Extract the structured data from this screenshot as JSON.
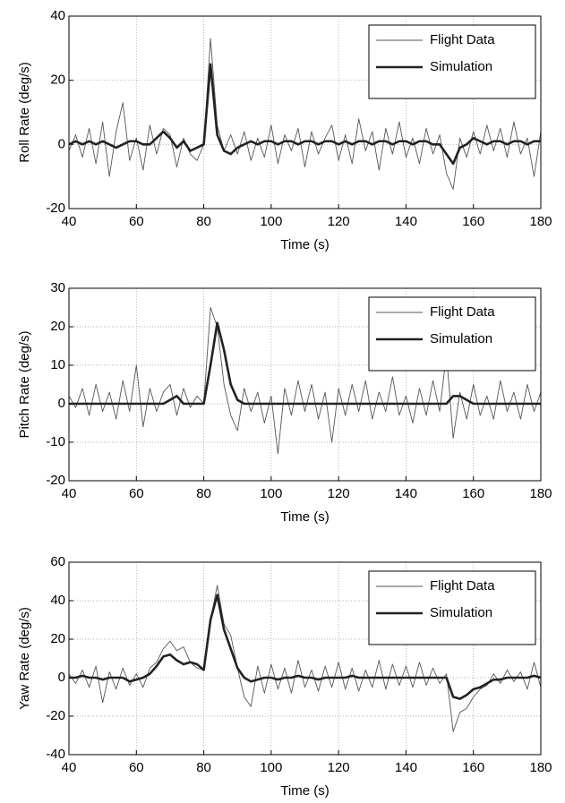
{
  "chart_data": [
    {
      "type": "line",
      "xlabel": "Time (s)",
      "ylabel": "Roll Rate (deg/s)",
      "x": [
        40,
        42,
        44,
        46,
        48,
        50,
        52,
        54,
        56,
        58,
        60,
        62,
        64,
        66,
        68,
        70,
        72,
        74,
        76,
        78,
        80,
        82,
        84,
        86,
        88,
        90,
        92,
        94,
        96,
        98,
        100,
        102,
        104,
        106,
        108,
        110,
        112,
        114,
        116,
        118,
        120,
        122,
        124,
        126,
        128,
        130,
        132,
        134,
        136,
        138,
        140,
        142,
        144,
        146,
        148,
        150,
        152,
        154,
        156,
        158,
        160,
        162,
        164,
        166,
        168,
        170,
        172,
        174,
        176,
        178,
        180
      ],
      "series": [
        {
          "name": "Flight Data",
          "color": "#555555",
          "values": [
            -2,
            3,
            -4,
            5,
            -6,
            7,
            -10,
            4,
            13,
            -5,
            2,
            -8,
            6,
            -3,
            5,
            3,
            -7,
            2,
            -3,
            -5,
            0,
            33,
            6,
            -2,
            3,
            -3,
            4,
            -5,
            2,
            -4,
            6,
            -6,
            3,
            -2,
            5,
            -7,
            4,
            -3,
            2,
            6,
            -5,
            3,
            -6,
            8,
            -2,
            4,
            -8,
            5,
            -3,
            7,
            -4,
            2,
            -6,
            5,
            -3,
            3,
            -9,
            -14,
            2,
            -4,
            4,
            -3,
            6,
            -2,
            5,
            -4,
            7,
            -3,
            2,
            -10,
            4
          ]
        },
        {
          "name": "Simulation",
          "color": "#222222",
          "values": [
            0,
            1,
            0,
            1,
            0,
            1,
            0,
            -1,
            0,
            1,
            1,
            0,
            0,
            2,
            4,
            2,
            -1,
            1,
            -2,
            -1,
            0,
            25,
            3,
            -2,
            -3,
            -1,
            0,
            1,
            0,
            1,
            1,
            0,
            1,
            1,
            0,
            1,
            1,
            0,
            1,
            1,
            0,
            1,
            0,
            1,
            1,
            0,
            1,
            1,
            0,
            1,
            1,
            0,
            1,
            1,
            0,
            0,
            -3,
            -6,
            -1,
            0,
            2,
            1,
            0,
            1,
            1,
            0,
            1,
            1,
            0,
            1,
            1
          ]
        }
      ],
      "xlim": [
        40,
        180
      ],
      "xticks": [
        40,
        60,
        80,
        100,
        120,
        140,
        160,
        180
      ],
      "ylim": [
        -20,
        40
      ],
      "yticks": [
        -20,
        0,
        20,
        40
      ],
      "grid": true,
      "legend": "upper right"
    },
    {
      "type": "line",
      "xlabel": "Time (s)",
      "ylabel": "Pitch Rate (deg/s)",
      "x": [
        40,
        42,
        44,
        46,
        48,
        50,
        52,
        54,
        56,
        58,
        60,
        62,
        64,
        66,
        68,
        70,
        72,
        74,
        76,
        78,
        80,
        82,
        84,
        86,
        88,
        90,
        92,
        94,
        96,
        98,
        100,
        102,
        104,
        106,
        108,
        110,
        112,
        114,
        116,
        118,
        120,
        122,
        124,
        126,
        128,
        130,
        132,
        134,
        136,
        138,
        140,
        142,
        144,
        146,
        148,
        150,
        152,
        154,
        156,
        158,
        160,
        162,
        164,
        166,
        168,
        170,
        172,
        174,
        176,
        178,
        180
      ],
      "series": [
        {
          "name": "Flight Data",
          "color": "#555555",
          "values": [
            2,
            -1,
            4,
            -3,
            5,
            -2,
            3,
            -4,
            6,
            -2,
            10,
            -6,
            4,
            -2,
            3,
            5,
            -3,
            4,
            -1,
            2,
            0,
            25,
            20,
            5,
            -3,
            -7,
            4,
            -2,
            3,
            -5,
            2,
            -13,
            4,
            -3,
            6,
            -2,
            5,
            -4,
            3,
            -10,
            4,
            -3,
            5,
            -2,
            6,
            -4,
            3,
            -2,
            7,
            -3,
            2,
            -5,
            4,
            -3,
            6,
            -2,
            13,
            -9,
            3,
            -4,
            5,
            -3,
            2,
            -4,
            6,
            -2,
            3,
            -4,
            5,
            -2,
            3
          ]
        },
        {
          "name": "Simulation",
          "color": "#222222",
          "values": [
            0,
            0,
            0,
            0,
            0,
            0,
            0,
            0,
            0,
            0,
            0,
            0,
            0,
            0,
            0,
            1,
            2,
            0,
            0,
            0,
            0,
            10,
            21,
            14,
            5,
            1,
            0,
            0,
            0,
            0,
            0,
            0,
            0,
            0,
            0,
            0,
            0,
            0,
            0,
            0,
            0,
            0,
            0,
            0,
            0,
            0,
            0,
            0,
            0,
            0,
            0,
            0,
            0,
            0,
            0,
            0,
            0,
            2,
            2,
            1,
            0,
            0,
            0,
            0,
            0,
            0,
            0,
            0,
            0,
            0,
            0
          ]
        }
      ],
      "xlim": [
        40,
        180
      ],
      "xticks": [
        40,
        60,
        80,
        100,
        120,
        140,
        160,
        180
      ],
      "ylim": [
        -20,
        30
      ],
      "yticks": [
        -20,
        -10,
        0,
        10,
        20,
        30
      ],
      "grid": true,
      "legend": "upper right"
    },
    {
      "type": "line",
      "xlabel": "Time (s)",
      "ylabel": "Yaw Rate (deg/s)",
      "x": [
        40,
        42,
        44,
        46,
        48,
        50,
        52,
        54,
        56,
        58,
        60,
        62,
        64,
        66,
        68,
        70,
        72,
        74,
        76,
        78,
        80,
        82,
        84,
        86,
        88,
        90,
        92,
        94,
        96,
        98,
        100,
        102,
        104,
        106,
        108,
        110,
        112,
        114,
        116,
        118,
        120,
        122,
        124,
        126,
        128,
        130,
        132,
        134,
        136,
        138,
        140,
        142,
        144,
        146,
        148,
        150,
        152,
        154,
        156,
        158,
        160,
        162,
        164,
        166,
        168,
        170,
        172,
        174,
        176,
        178,
        180
      ],
      "series": [
        {
          "name": "Flight Data",
          "color": "#555555",
          "values": [
            2,
            -3,
            4,
            -5,
            6,
            -13,
            3,
            -6,
            5,
            -4,
            2,
            -5,
            5,
            8,
            15,
            19,
            14,
            16,
            8,
            5,
            4,
            30,
            48,
            28,
            22,
            5,
            -10,
            -15,
            6,
            -8,
            7,
            -6,
            5,
            -8,
            9,
            -5,
            4,
            -7,
            6,
            -5,
            8,
            -6,
            5,
            -7,
            4,
            -5,
            9,
            -6,
            7,
            -4,
            6,
            -5,
            8,
            -4,
            5,
            -3,
            2,
            -28,
            -18,
            -16,
            -10,
            -6,
            -4,
            2,
            -3,
            4,
            -2,
            3,
            -6,
            8,
            -5
          ]
        },
        {
          "name": "Simulation",
          "color": "#222222",
          "values": [
            0,
            0,
            1,
            0,
            0,
            -1,
            0,
            0,
            0,
            -2,
            -1,
            0,
            2,
            6,
            11,
            12,
            9,
            7,
            8,
            7,
            4,
            30,
            43,
            25,
            15,
            5,
            0,
            -2,
            -1,
            0,
            0,
            -1,
            0,
            0,
            1,
            0,
            0,
            -1,
            0,
            0,
            0,
            0,
            1,
            0,
            0,
            0,
            0,
            0,
            0,
            0,
            0,
            0,
            0,
            0,
            0,
            0,
            0,
            -10,
            -11,
            -9,
            -6,
            -5,
            -3,
            -1,
            -1,
            0,
            0,
            0,
            0,
            1,
            0
          ]
        }
      ],
      "xlim": [
        40,
        180
      ],
      "xticks": [
        40,
        60,
        80,
        100,
        120,
        140,
        160,
        180
      ],
      "ylim": [
        -40,
        60
      ],
      "yticks": [
        -40,
        -20,
        0,
        20,
        40,
        60
      ],
      "grid": true,
      "legend": "upper right"
    }
  ]
}
